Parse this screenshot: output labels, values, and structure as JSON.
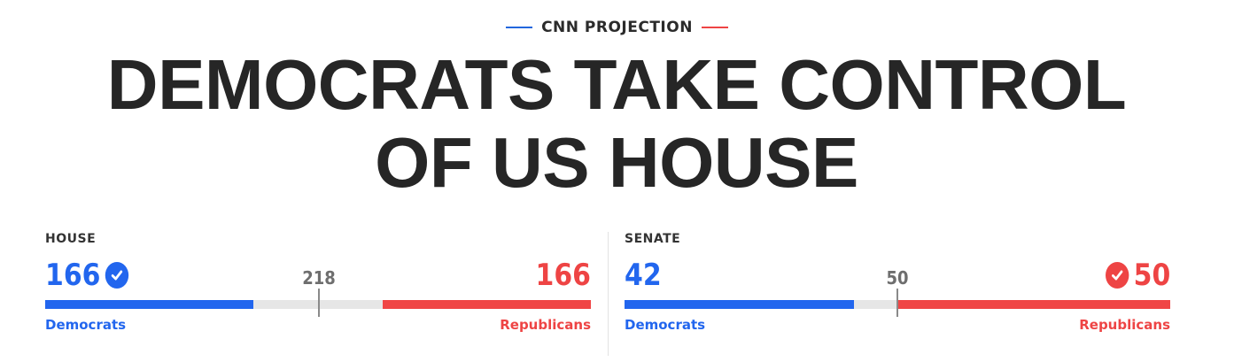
{
  "kicker": "CNN PROJECTION",
  "headline": {
    "line1": "DEMOCRATS TAKE CONTROL",
    "line2": "OF US HOUSE"
  },
  "colors": {
    "democrat": "#2266ee",
    "republican": "#ee4444",
    "neutral": "#e6e6e6"
  },
  "house": {
    "label": "HOUSE",
    "total_seats": 435,
    "threshold": "218",
    "dem": {
      "count": "166",
      "party": "Democrats",
      "winner": true,
      "icon": "checkmark-icon"
    },
    "rep": {
      "count": "166",
      "party": "Republicans",
      "winner": false
    }
  },
  "senate": {
    "label": "SENATE",
    "total_seats": 100,
    "threshold": "50",
    "dem": {
      "count": "42",
      "party": "Democrats",
      "winner": false
    },
    "rep": {
      "count": "50",
      "party": "Republicans",
      "winner": true,
      "icon": "checkmark-icon"
    }
  }
}
